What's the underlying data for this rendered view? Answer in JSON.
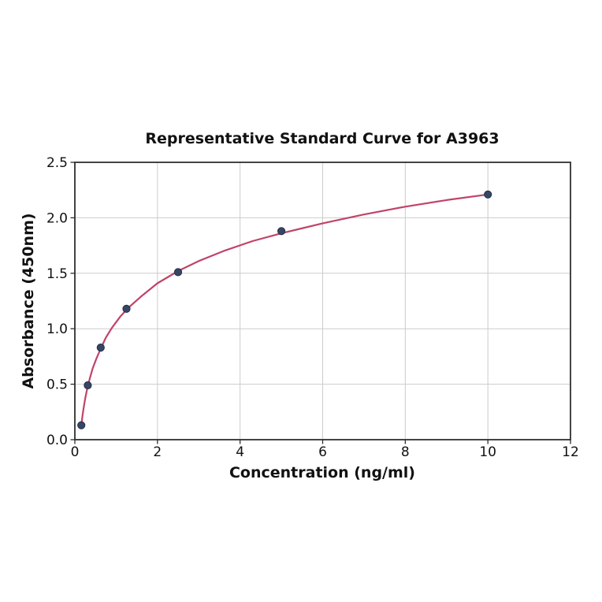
{
  "chart_data": {
    "type": "scatter",
    "title": "Representative Standard Curve for A3963",
    "xlabel": "Concentration (ng/ml)",
    "ylabel": "Absorbance (450nm)",
    "xlim": [
      0,
      12
    ],
    "ylim": [
      0,
      2.5
    ],
    "grid": true,
    "legend": "none",
    "x_ticks": [
      0,
      2,
      4,
      6,
      8,
      10,
      12
    ],
    "x_tick_labels": [
      "0",
      "2",
      "4",
      "6",
      "8",
      "10",
      "12"
    ],
    "y_ticks": [
      0,
      0.5,
      1.0,
      1.5,
      2.0,
      2.5
    ],
    "y_tick_labels": [
      "0.0",
      "0.5",
      "1.0",
      "1.5",
      "2.0",
      "2.5"
    ],
    "series": [
      {
        "name": "standards",
        "marker": "circle",
        "x": [
          0.156,
          0.313,
          0.625,
          1.25,
          2.5,
          5,
          10
        ],
        "y": [
          0.13,
          0.49,
          0.83,
          1.18,
          1.51,
          1.88,
          2.21
        ]
      }
    ],
    "fit_curve": {
      "model": "logarithmic",
      "x": [
        0.156,
        0.18,
        0.21,
        0.25,
        0.3,
        0.36,
        0.43,
        0.52,
        0.625,
        0.75,
        0.9,
        1.1,
        1.3,
        1.6,
        2.0,
        2.5,
        3.0,
        3.6,
        4.3,
        5.0,
        6.0,
        7.0,
        8.0,
        9.0,
        10.0
      ],
      "y": [
        0.13,
        0.2,
        0.28,
        0.37,
        0.46,
        0.55,
        0.64,
        0.73,
        0.82,
        0.92,
        1.01,
        1.11,
        1.19,
        1.29,
        1.41,
        1.52,
        1.61,
        1.7,
        1.79,
        1.86,
        1.95,
        2.03,
        2.1,
        2.16,
        2.21
      ]
    },
    "colors": {
      "curve": "#c04468",
      "marker_fill": "#364663",
      "marker_edge": "#232f4e",
      "grid": "#cccccc",
      "spine": "#2f2f2f",
      "background": "#ffffff"
    }
  }
}
